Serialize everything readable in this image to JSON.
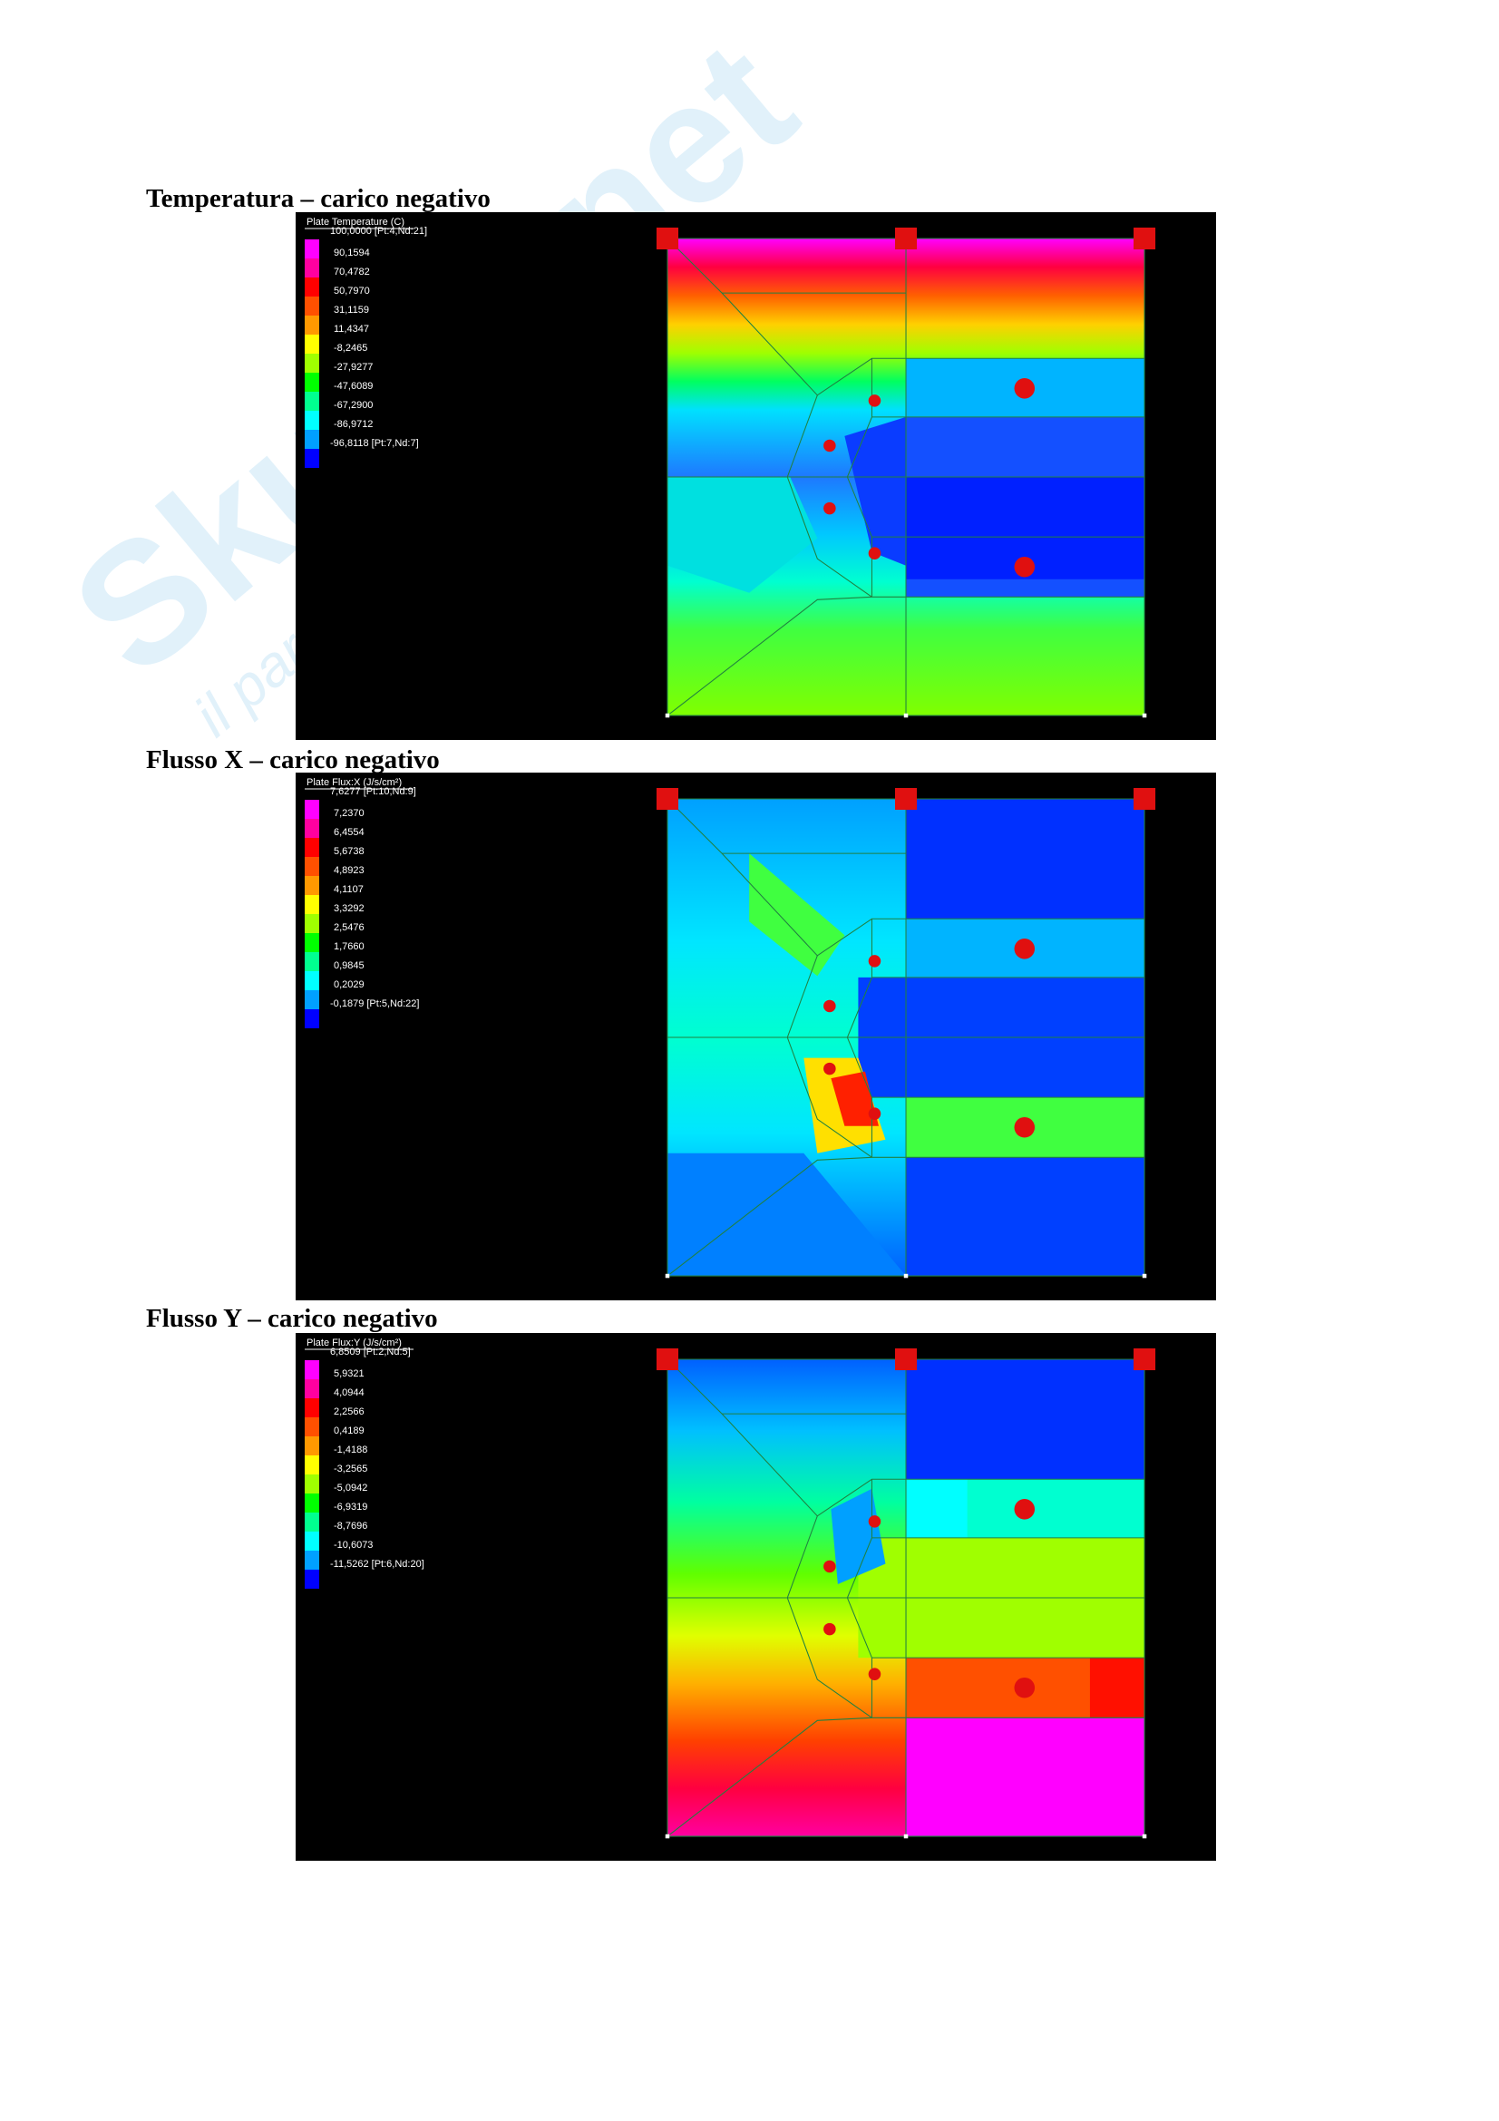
{
  "watermark": {
    "brand": "Skuola.net",
    "tagline": "il paradiso dello studente"
  },
  "sections": [
    {
      "heading": "Temperatura – carico negativo",
      "legend": {
        "title": "Plate  Temperature (C)",
        "values": [
          "100,0000 [Pt:4,Nd:21]",
          "90,1594",
          "70,4782",
          "50,7970",
          "31,1159",
          "11,4347",
          "-8,2465",
          "-27,9277",
          "-47,6089",
          "-67,2900",
          "-86,9712",
          "-96,8118 [Pt:7,Nd:7]"
        ]
      }
    },
    {
      "heading": "Flusso X – carico negativo",
      "legend": {
        "title": "Plate  Flux:X (J/s/cm²)",
        "values": [
          "7,6277 [Pt:10,Nd:9]",
          "7,2370",
          "6,4554",
          "5,6738",
          "4,8923",
          "4,1107",
          "3,3292",
          "2,5476",
          "1,7660",
          "0,9845",
          "0,2029",
          "-0,1879 [Pt:5,Nd:22]"
        ]
      }
    },
    {
      "heading": "Flusso Y – carico negativo",
      "legend": {
        "title": "Plate  Flux:Y (J/s/cm²)",
        "values": [
          "6,8509 [Pt:2,Nd:5]",
          "5,9321",
          "4,0944",
          "2,2566",
          "0,4189",
          "-1,4188",
          "-3,2565",
          "-5,0942",
          "-6,9319",
          "-8,7696",
          "-10,6073",
          "-11,5262 [Pt:6,Nd:20]"
        ]
      }
    }
  ]
}
